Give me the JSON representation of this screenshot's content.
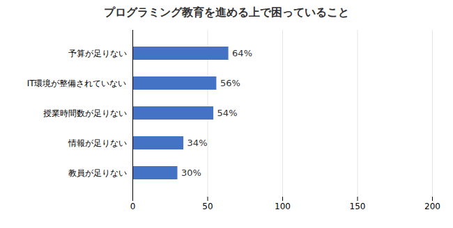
{
  "chart_data": {
    "type": "bar",
    "orientation": "horizontal",
    "title": "プログラミング教育を進める上で困っていること",
    "categories": [
      "教員が足りない",
      "情報が足りない",
      "授業時間数が足りない",
      "IT環境が整備されていない",
      "予算が足りない"
    ],
    "values": [
      30,
      34,
      54,
      56,
      64
    ],
    "value_labels": [
      "30%",
      "34%",
      "54%",
      "56%",
      "64%"
    ],
    "data_labels": true,
    "color": "#4472C4",
    "xlim": [
      0,
      200
    ],
    "xticks": [
      0,
      50,
      100,
      150,
      200
    ],
    "grid": true
  }
}
